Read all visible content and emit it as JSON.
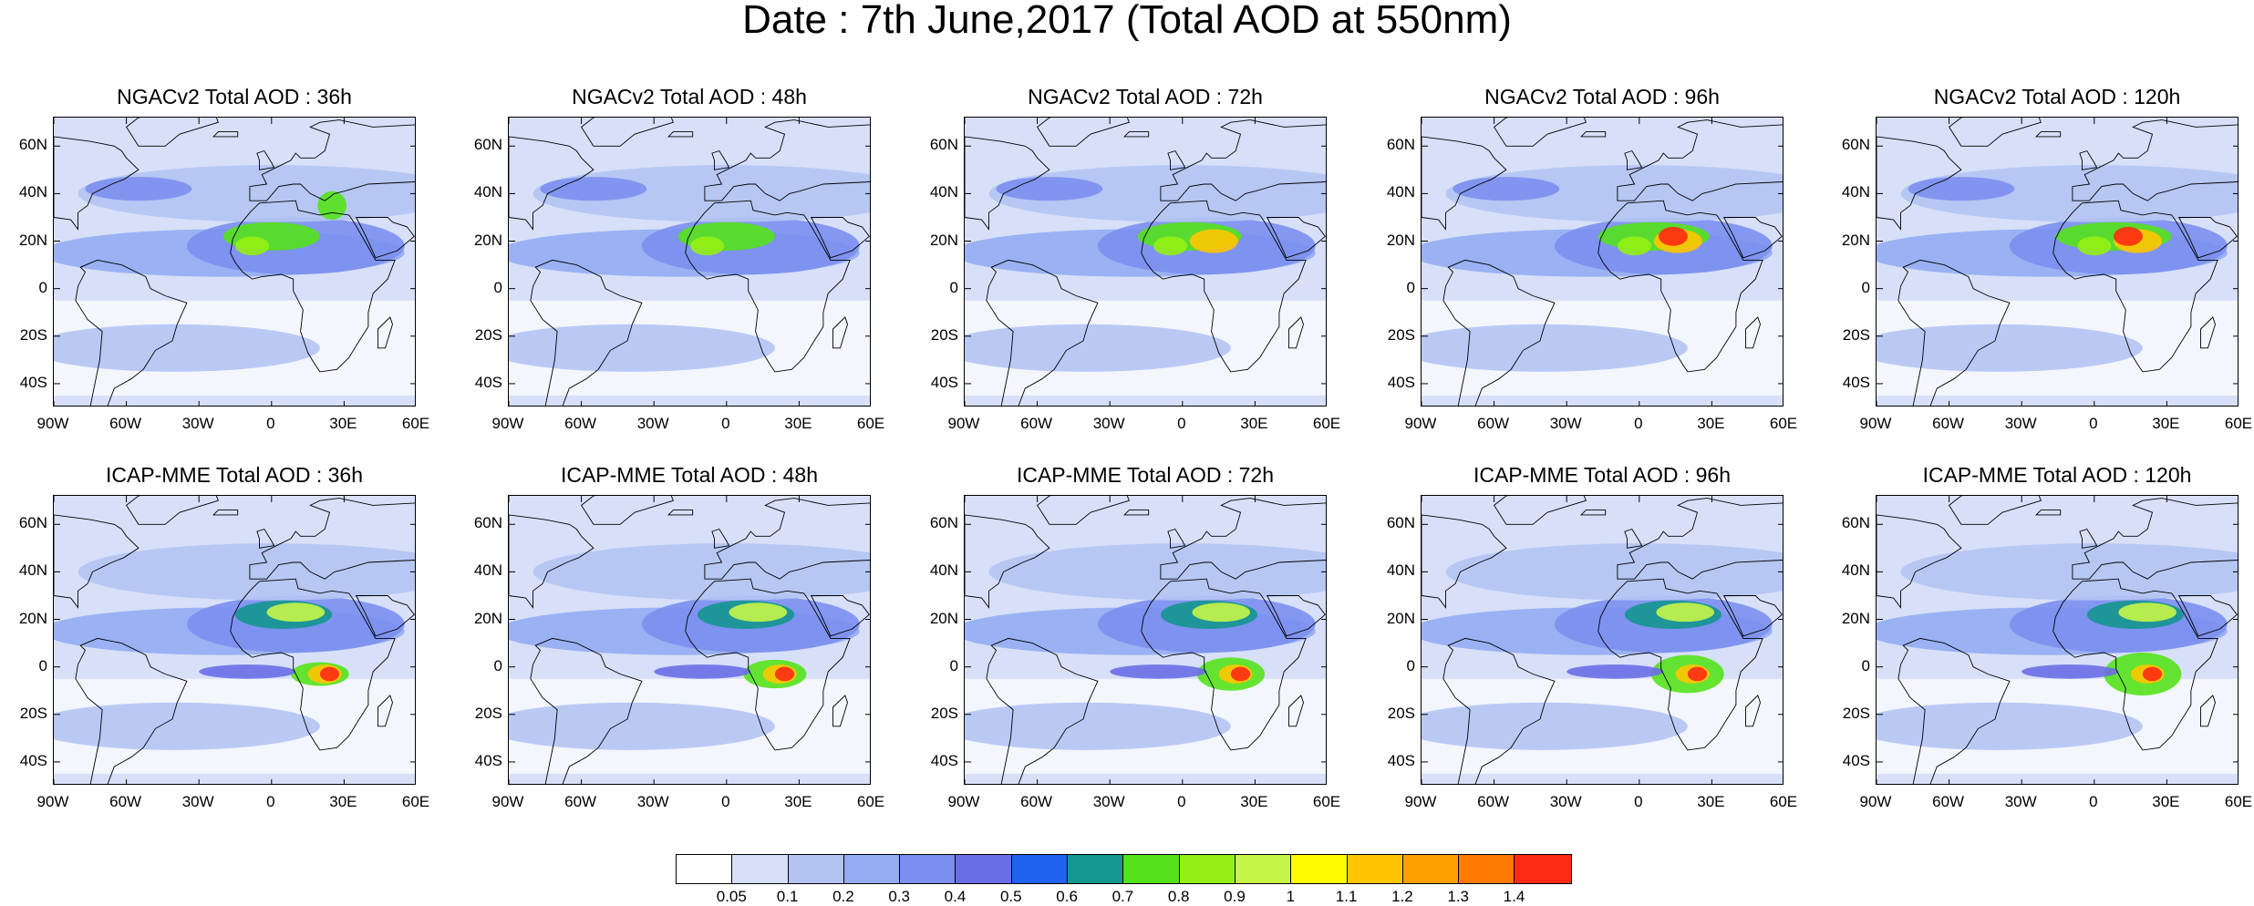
{
  "title": "Date : 7th June,2017 (Total AOD at 550nm)",
  "rows": [
    {
      "panels": [
        {
          "title": "NGACv2 Total AOD : 36h",
          "model": "NGACv2",
          "lead_hours": 36
        },
        {
          "title": "NGACv2 Total AOD : 48h",
          "model": "NGACv2",
          "lead_hours": 48
        },
        {
          "title": "NGACv2 Total AOD : 72h",
          "model": "NGACv2",
          "lead_hours": 72
        },
        {
          "title": "NGACv2 Total AOD : 96h",
          "model": "NGACv2",
          "lead_hours": 96
        },
        {
          "title": "NGACv2 Total AOD : 120h",
          "model": "NGACv2",
          "lead_hours": 120
        }
      ]
    },
    {
      "panels": [
        {
          "title": "ICAP-MME Total AOD : 36h",
          "model": "ICAP-MME",
          "lead_hours": 36
        },
        {
          "title": "ICAP-MME Total AOD : 48h",
          "model": "ICAP-MME",
          "lead_hours": 48
        },
        {
          "title": "ICAP-MME Total AOD : 72h",
          "model": "ICAP-MME",
          "lead_hours": 72
        },
        {
          "title": "ICAP-MME Total AOD : 96h",
          "model": "ICAP-MME",
          "lead_hours": 96
        },
        {
          "title": "ICAP-MME Total AOD : 120h",
          "model": "ICAP-MME",
          "lead_hours": 120
        }
      ]
    }
  ],
  "axes": {
    "lat_ticks": [
      "60N",
      "40N",
      "20N",
      "0",
      "20S",
      "40S"
    ],
    "lat_values": [
      60,
      40,
      20,
      0,
      -20,
      -40
    ],
    "lon_ticks": [
      "90W",
      "60W",
      "30W",
      "0",
      "30E",
      "60E"
    ],
    "lon_values": [
      -90,
      -60,
      -30,
      0,
      30,
      60
    ],
    "lon_range": [
      -90,
      60
    ],
    "lat_range": [
      -50,
      72
    ]
  },
  "colorbar": {
    "labels": [
      "0.05",
      "0.1",
      "0.2",
      "0.3",
      "0.4",
      "0.5",
      "0.6",
      "0.7",
      "0.8",
      "0.9",
      "1",
      "1.1",
      "1.2",
      "1.3",
      "1.4"
    ],
    "colors": [
      "#ffffff",
      "#d7e0f8",
      "#b4c4f3",
      "#93acf2",
      "#7b8ff0",
      "#6a6ee6",
      "#1f62f0",
      "#13968f",
      "#55e21b",
      "#93ef14",
      "#c6f547",
      "#fffb00",
      "#ffc500",
      "#ff9f00",
      "#ff7a00",
      "#ff2a14"
    ]
  }
}
